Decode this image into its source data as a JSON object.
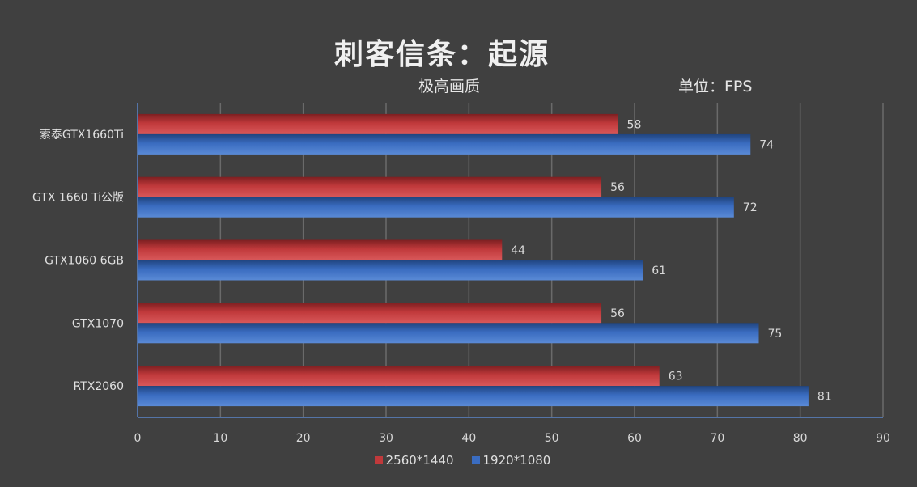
{
  "chart_data": {
    "type": "bar",
    "orientation": "horizontal",
    "title": "刺客信条：起源",
    "subtitle": "极高画质",
    "unit_label": "单位：FPS",
    "categories": [
      "索泰GTX1660Ti",
      "GTX 1660 Ti公版",
      "GTX1060 6GB",
      "GTX1070",
      "RTX2060"
    ],
    "series": [
      {
        "name": "2560*1440",
        "color": "#c0393b",
        "values": [
          58,
          56,
          44,
          56,
          63
        ]
      },
      {
        "name": "1920*1080",
        "color": "#3a6cc0",
        "values": [
          74,
          72,
          61,
          75,
          81
        ]
      }
    ],
    "xlim": [
      0,
      90
    ],
    "xticks": [
      0,
      10,
      20,
      30,
      40,
      50,
      60,
      70,
      80,
      90
    ],
    "grid": true,
    "legend_position": "bottom"
  }
}
